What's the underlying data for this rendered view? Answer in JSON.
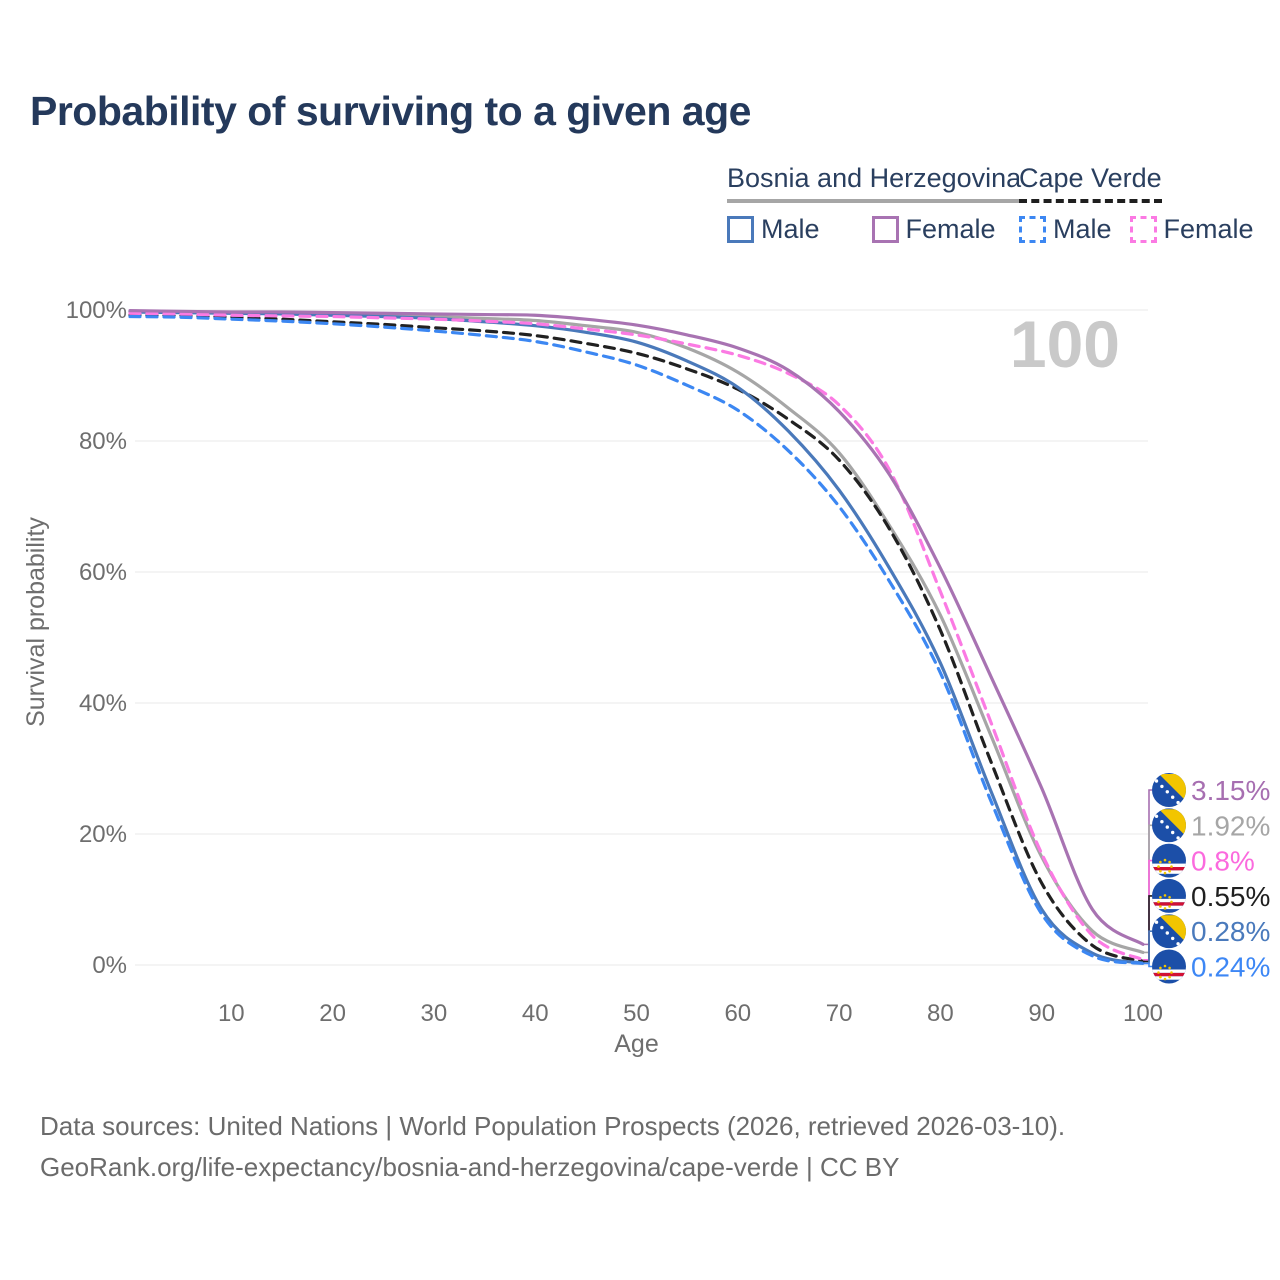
{
  "title": "Probability of surviving to a given age",
  "legend": {
    "groups": [
      {
        "label": "Bosnia and Herzegovina",
        "style": "solid",
        "color": "#a6a6a6",
        "items": [
          {
            "label": "Male",
            "color": "#4a79ba"
          },
          {
            "label": "Female",
            "color": "#a873b2"
          }
        ]
      },
      {
        "label": "Cape Verde",
        "style": "dashed",
        "color": "#1f1f1f",
        "items": [
          {
            "label": "Male",
            "color": "#3c87f2"
          },
          {
            "label": "Female",
            "color": "#fb7ae3"
          }
        ]
      }
    ]
  },
  "annotation": {
    "value": "100"
  },
  "axes": {
    "x": {
      "label": "Age",
      "ticks": [
        10,
        20,
        30,
        40,
        50,
        60,
        70,
        80,
        90,
        100
      ],
      "min": 0,
      "max": 100
    },
    "y": {
      "label": "Survival probability",
      "ticks": [
        0,
        20,
        40,
        60,
        80,
        100
      ],
      "unit": "%"
    }
  },
  "end_labels": [
    {
      "value": "3.15%",
      "pct": 3.15,
      "flag": "bosnia-and-herzegovina",
      "color": "#a76fb1"
    },
    {
      "value": "1.92%",
      "pct": 1.92,
      "flag": "bosnia-and-herzegovina",
      "color": "#a6a6a6"
    },
    {
      "value": "0.8%",
      "pct": 0.8,
      "flag": "cape-verde",
      "color": "#fb6ade"
    },
    {
      "value": "0.55%",
      "pct": 0.55,
      "flag": "cape-verde",
      "color": "#1f1f1f"
    },
    {
      "value": "0.28%",
      "pct": 0.28,
      "flag": "bosnia-and-herzegovina",
      "color": "#4a7abc"
    },
    {
      "value": "0.24%",
      "pct": 0.24,
      "flag": "cape-verde",
      "color": "#3d87f5"
    }
  ],
  "footer": {
    "line1": "Data sources: United Nations | World Population Prospects (2026, retrieved 2026-03-10).",
    "line2": "GeoRank.org/life-expectancy/bosnia-and-herzegovina/cape-verde | CC BY"
  },
  "chart_data": {
    "type": "line",
    "title": "Probability of surviving to a given age",
    "xlabel": "Age",
    "ylabel": "Survival probability",
    "xlim": [
      0,
      100
    ],
    "ylim": [
      0,
      100
    ],
    "grid": true,
    "legend_position": "top-right",
    "x": [
      0,
      5,
      10,
      15,
      20,
      25,
      30,
      35,
      40,
      45,
      50,
      55,
      60,
      65,
      70,
      75,
      80,
      85,
      90,
      95,
      100
    ],
    "series": [
      {
        "id": "bih-total",
        "name": "Bosnia and Herzegovina — Total",
        "country": "Bosnia and Herzegovina",
        "sex": "Total",
        "style": "solid",
        "color": "#a6a6a6",
        "end_label": "1.92%",
        "values": [
          99.8,
          99.7,
          99.6,
          99.5,
          99.4,
          99.2,
          99.0,
          98.7,
          98.4,
          97.6,
          96.6,
          94.2,
          90.5,
          85.0,
          78.2,
          67.0,
          53.4,
          35.0,
          16.5,
          5.2,
          1.92
        ]
      },
      {
        "id": "cv-total",
        "name": "Cape Verde — Total",
        "country": "Cape Verde",
        "sex": "Total",
        "style": "dashed",
        "color": "#212121",
        "end_label": "0.55%",
        "values": [
          99.2,
          99.1,
          98.9,
          98.6,
          98.2,
          97.8,
          97.3,
          96.8,
          96.1,
          94.9,
          93.4,
          91.0,
          87.9,
          83.3,
          77.1,
          66.5,
          51.1,
          31.0,
          12.5,
          3.0,
          0.55
        ]
      },
      {
        "id": "bih-male",
        "name": "Bosnia and Herzegovina — Male",
        "country": "Bosnia and Herzegovina",
        "sex": "Male",
        "style": "solid",
        "color": "#4a79ba",
        "end_label": "0.28%",
        "values": [
          99.7,
          99.6,
          99.5,
          99.4,
          99.2,
          99.0,
          98.7,
          98.2,
          97.6,
          96.6,
          95.1,
          92.2,
          88.2,
          81.5,
          72.5,
          60.5,
          46.1,
          26.5,
          8.5,
          1.8,
          0.28
        ]
      },
      {
        "id": "cv-male",
        "name": "Cape Verde — Male",
        "country": "Cape Verde",
        "sex": "Male",
        "style": "dashed",
        "color": "#3c87f2",
        "end_label": "0.24%",
        "values": [
          99.0,
          98.9,
          98.6,
          98.3,
          97.9,
          97.4,
          96.8,
          96.1,
          95.2,
          93.6,
          91.6,
          88.5,
          84.7,
          78.5,
          70.0,
          58.5,
          44.6,
          25.0,
          7.8,
          1.4,
          0.24
        ]
      },
      {
        "id": "cv-female",
        "name": "Cape Verde — Female",
        "country": "Cape Verde",
        "sex": "Female",
        "style": "dashed",
        "color": "#fb7ae3",
        "end_label": "0.8%",
        "values": [
          99.5,
          99.4,
          99.2,
          99.1,
          99.0,
          98.8,
          98.6,
          98.3,
          97.9,
          97.1,
          96.2,
          94.8,
          93.1,
          90.3,
          85.5,
          75.5,
          57.0,
          37.0,
          17.0,
          4.5,
          0.8
        ]
      },
      {
        "id": "bih-female",
        "name": "Bosnia and Herzegovina — Female",
        "country": "Bosnia and Herzegovina",
        "sex": "Female",
        "style": "solid",
        "color": "#a873b2",
        "end_label": "3.15%",
        "values": [
          99.9,
          99.8,
          99.7,
          99.7,
          99.6,
          99.5,
          99.4,
          99.3,
          99.2,
          98.6,
          97.7,
          96.2,
          94.2,
          90.8,
          84.5,
          74.8,
          60.6,
          44.0,
          27.0,
          8.5,
          3.15
        ]
      }
    ]
  }
}
